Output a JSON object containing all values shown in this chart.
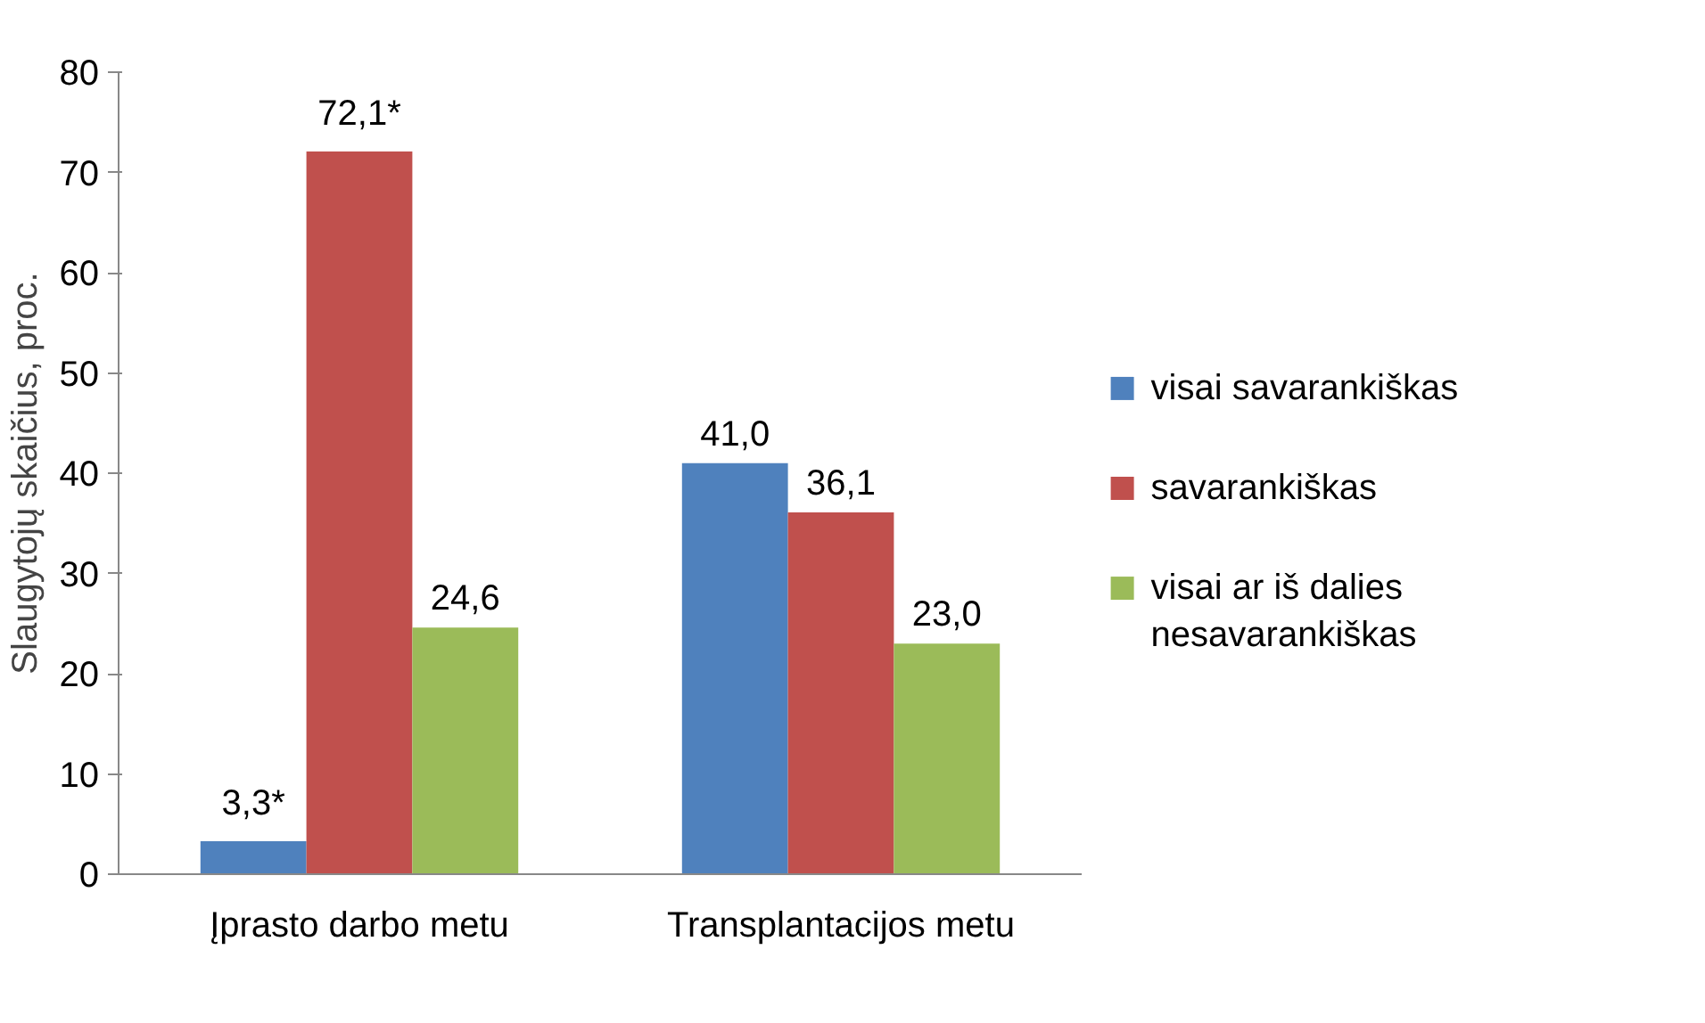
{
  "chart_data": {
    "type": "bar",
    "ylabel": "Slaugytojų skaičius, proc.",
    "categories": [
      "Įprasto darbo metu",
      "Transplantacijos metu"
    ],
    "series": [
      {
        "name": "visai savarankiškas",
        "color": "#4f81bd",
        "values": [
          3.3,
          41.0
        ],
        "value_labels": [
          "3,3*",
          "41,0"
        ]
      },
      {
        "name": "savarankiškas",
        "color": "#c0504d",
        "values": [
          72.1,
          36.1
        ],
        "value_labels": [
          "72,1*",
          "36,1"
        ]
      },
      {
        "name": "visai ar iš dalies nesavarankiškas",
        "color": "#9bbb59",
        "values": [
          24.6,
          23.0
        ],
        "value_labels": [
          "24,6",
          "23,0"
        ]
      }
    ],
    "ylim": [
      0,
      80
    ],
    "yticks": [
      0,
      10,
      20,
      30,
      40,
      50,
      60,
      70,
      80
    ],
    "grid": false,
    "legend": "right"
  }
}
